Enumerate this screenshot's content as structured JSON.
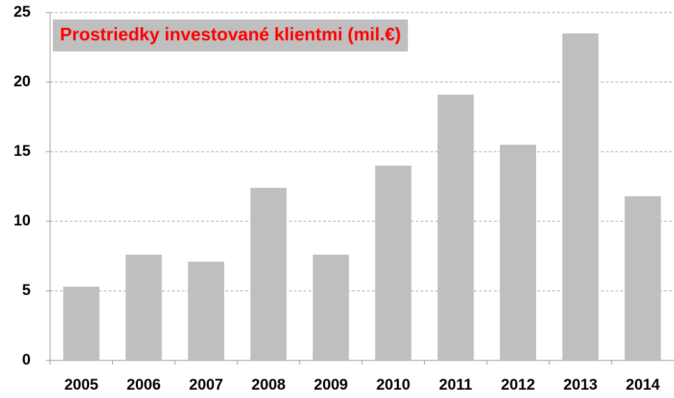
{
  "chart_data": {
    "type": "bar",
    "title": "Prostriedky investované klientmi (mil.€)",
    "categories": [
      "2005",
      "2006",
      "2007",
      "2008",
      "2009",
      "2010",
      "2011",
      "2012",
      "2013",
      "2014"
    ],
    "values": [
      5.3,
      7.6,
      7.1,
      12.4,
      7.6,
      14.0,
      19.1,
      15.5,
      23.5,
      11.8
    ],
    "color": "#bfbfbf",
    "ylim": [
      0,
      25
    ],
    "yticks": [
      0,
      5,
      10,
      15,
      20,
      25
    ],
    "grid": true
  }
}
